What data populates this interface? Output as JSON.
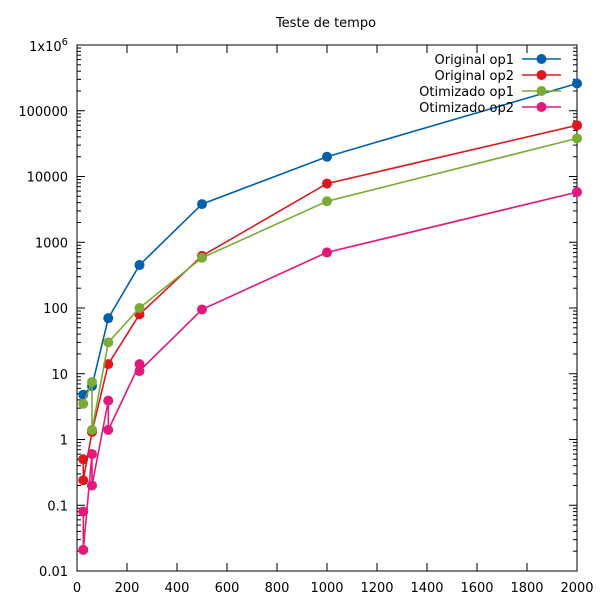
{
  "chart_data": {
    "type": "line",
    "title": "Teste de tempo",
    "xlabel": "",
    "ylabel": "",
    "xlim": [
      0,
      2000
    ],
    "ylim": [
      0.01,
      1000000
    ],
    "yscale": "log",
    "grid": false,
    "legend_position": "top-right",
    "xticks": [
      "0",
      "200",
      "400",
      "600",
      "800",
      "1000",
      "1200",
      "1400",
      "1600",
      "1800",
      "2000"
    ],
    "yticks": [
      "0.01",
      "0.1",
      "1",
      "10",
      "100",
      "1000",
      "10000",
      "100000",
      "1x10^6"
    ],
    "x": [
      25,
      60,
      125,
      250,
      500,
      1000,
      2000
    ],
    "series": [
      {
        "name": "Original op1",
        "color": "#0060ad",
        "values": [
          4.8,
          6.5,
          70,
          450,
          3800,
          20000,
          260000
        ]
      },
      {
        "name": "Original op2",
        "color": "#dd181f",
        "values": [
          0.5,
          1.3,
          14,
          80,
          620,
          7800,
          60000
        ]
      },
      {
        "name": "Otimizado op1",
        "color": "#7cab35",
        "values": [
          3.5,
          7.5,
          30,
          100,
          580,
          4200,
          38000
        ]
      },
      {
        "name": "Otimizado op2",
        "color": "#e0197a",
        "values": [
          0.08,
          0.6,
          3.9,
          14,
          95,
          700,
          5800
        ]
      }
    ],
    "extra_points": [
      {
        "series": 1,
        "x": 25,
        "y": 0.24
      },
      {
        "series": 2,
        "x": 60,
        "y": 1.4
      },
      {
        "series": 3,
        "x": 25,
        "y": 0.021
      },
      {
        "series": 3,
        "x": 60,
        "y": 0.2
      },
      {
        "series": 3,
        "x": 125,
        "y": 1.4
      },
      {
        "series": 3,
        "x": 250,
        "y": 11
      }
    ]
  }
}
